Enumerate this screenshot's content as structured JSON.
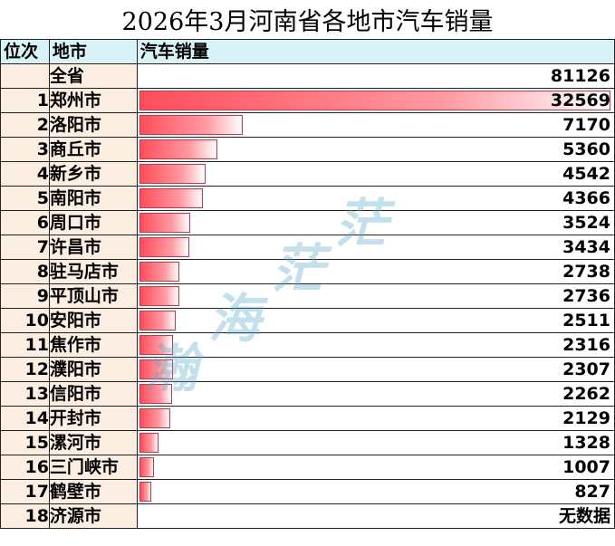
{
  "title": "2026年3月河南省各地市汽车销量",
  "headers": {
    "rank": "位次",
    "city": "地市",
    "value": "汽车销量"
  },
  "watermark": [
    "瀚",
    "海",
    "茫",
    "茫"
  ],
  "chart_data": {
    "type": "bar",
    "orientation": "horizontal",
    "title": "2026年3月河南省各地市汽车销量",
    "total": {
      "label": "全省",
      "value": 81126
    },
    "rows": [
      {
        "rank": "1",
        "city": "郑州市",
        "value": 32569
      },
      {
        "rank": "2",
        "city": "洛阳市",
        "value": 7170
      },
      {
        "rank": "3",
        "city": "商丘市",
        "value": 5360
      },
      {
        "rank": "4",
        "city": "新乡市",
        "value": 4542
      },
      {
        "rank": "5",
        "city": "南阳市",
        "value": 4366
      },
      {
        "rank": "6",
        "city": "周口市",
        "value": 3524
      },
      {
        "rank": "7",
        "city": "许昌市",
        "value": 3434
      },
      {
        "rank": "8",
        "city": "驻马店市",
        "value": 2738
      },
      {
        "rank": "9",
        "city": "平顶山市",
        "value": 2736
      },
      {
        "rank": "10",
        "city": "安阳市",
        "value": 2511
      },
      {
        "rank": "11",
        "city": "焦作市",
        "value": 2316
      },
      {
        "rank": "12",
        "city": "濮阳市",
        "value": 2307
      },
      {
        "rank": "13",
        "city": "信阳市",
        "value": 2262
      },
      {
        "rank": "14",
        "city": "开封市",
        "value": 2129
      },
      {
        "rank": "15",
        "city": "漯河市",
        "value": 1328
      },
      {
        "rank": "16",
        "city": "三门峡市",
        "value": 1007
      },
      {
        "rank": "17",
        "city": "鹤壁市",
        "value": 827
      },
      {
        "rank": "18",
        "city": "济源市",
        "value": null,
        "display": "无数据"
      }
    ]
  }
}
